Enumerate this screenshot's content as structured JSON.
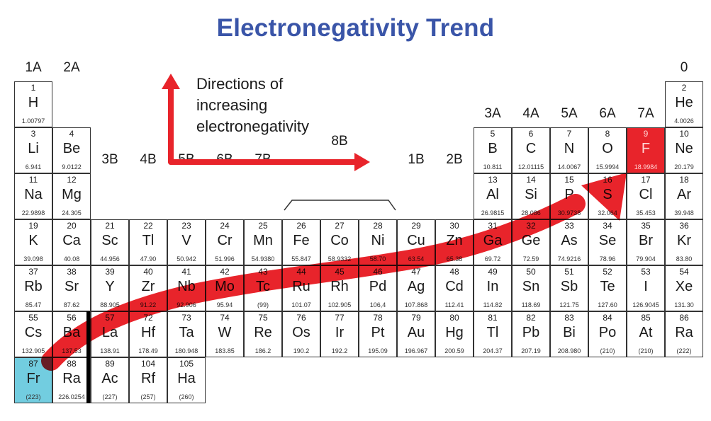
{
  "title": "Electronegativity Trend",
  "legend": {
    "lines": [
      "Directions of",
      "increasing",
      "electronegativity"
    ],
    "arrow_color": "#e8242b"
  },
  "colors": {
    "title": "#3a55a8",
    "highest_electronegativity": "#e8242b",
    "lowest_electronegativity": "#72cde0",
    "trend_arrow": "#e8242b"
  },
  "group_labels": [
    {
      "label": "1A",
      "col": 1,
      "row": 0
    },
    {
      "label": "2A",
      "col": 2,
      "row": 0
    },
    {
      "label": "3B",
      "col": 3,
      "row": 2
    },
    {
      "label": "4B",
      "col": 4,
      "row": 2
    },
    {
      "label": "5B",
      "col": 5,
      "row": 2
    },
    {
      "label": "6B",
      "col": 6,
      "row": 2
    },
    {
      "label": "7B",
      "col": 7,
      "row": 2
    },
    {
      "label": "8B",
      "col": 9,
      "row": 1.6
    },
    {
      "label": "1B",
      "col": 11,
      "row": 2
    },
    {
      "label": "2B",
      "col": 12,
      "row": 2
    },
    {
      "label": "3A",
      "col": 13,
      "row": 1
    },
    {
      "label": "4A",
      "col": 14,
      "row": 1
    },
    {
      "label": "5A",
      "col": 15,
      "row": 1
    },
    {
      "label": "6A",
      "col": 16,
      "row": 1
    },
    {
      "label": "7A",
      "col": 17,
      "row": 1
    },
    {
      "label": "0",
      "col": 18,
      "row": 0
    }
  ],
  "elements": [
    {
      "n": "1",
      "s": "H",
      "m": "1.00797",
      "col": 1,
      "row": 1
    },
    {
      "n": "2",
      "s": "He",
      "m": "4.0026",
      "col": 18,
      "row": 1
    },
    {
      "n": "3",
      "s": "Li",
      "m": "6.941",
      "col": 1,
      "row": 2
    },
    {
      "n": "4",
      "s": "Be",
      "m": "9.0122",
      "col": 2,
      "row": 2
    },
    {
      "n": "5",
      "s": "B",
      "m": "10.811",
      "col": 13,
      "row": 2
    },
    {
      "n": "6",
      "s": "C",
      "m": "12.01115",
      "col": 14,
      "row": 2
    },
    {
      "n": "7",
      "s": "N",
      "m": "14.0067",
      "col": 15,
      "row": 2
    },
    {
      "n": "8",
      "s": "O",
      "m": "15.9994",
      "col": 16,
      "row": 2
    },
    {
      "n": "9",
      "s": "F",
      "m": "18.9984",
      "col": 17,
      "row": 2,
      "hl": "red"
    },
    {
      "n": "10",
      "s": "Ne",
      "m": "20.179",
      "col": 18,
      "row": 2
    },
    {
      "n": "11",
      "s": "Na",
      "m": "22.9898",
      "col": 1,
      "row": 3
    },
    {
      "n": "12",
      "s": "Mg",
      "m": "24.305",
      "col": 2,
      "row": 3
    },
    {
      "n": "13",
      "s": "Al",
      "m": "26.9815",
      "col": 13,
      "row": 3
    },
    {
      "n": "14",
      "s": "Si",
      "m": "28.086",
      "col": 14,
      "row": 3
    },
    {
      "n": "15",
      "s": "P",
      "m": "30.9738",
      "col": 15,
      "row": 3
    },
    {
      "n": "16",
      "s": "S",
      "m": "32.064",
      "col": 16,
      "row": 3
    },
    {
      "n": "17",
      "s": "Cl",
      "m": "35.453",
      "col": 17,
      "row": 3
    },
    {
      "n": "18",
      "s": "Ar",
      "m": "39.948",
      "col": 18,
      "row": 3
    },
    {
      "n": "19",
      "s": "K",
      "m": "39.098",
      "col": 1,
      "row": 4
    },
    {
      "n": "20",
      "s": "Ca",
      "m": "40.08",
      "col": 2,
      "row": 4
    },
    {
      "n": "21",
      "s": "Sc",
      "m": "44.956",
      "col": 3,
      "row": 4
    },
    {
      "n": "22",
      "s": "Tl",
      "m": "47.90",
      "col": 4,
      "row": 4
    },
    {
      "n": "23",
      "s": "V",
      "m": "50.942",
      "col": 5,
      "row": 4
    },
    {
      "n": "24",
      "s": "Cr",
      "m": "51.996",
      "col": 6,
      "row": 4
    },
    {
      "n": "25",
      "s": "Mn",
      "m": "54.9380",
      "col": 7,
      "row": 4
    },
    {
      "n": "26",
      "s": "Fe",
      "m": "55.847",
      "col": 8,
      "row": 4
    },
    {
      "n": "27",
      "s": "Co",
      "m": "58.9332",
      "col": 9,
      "row": 4
    },
    {
      "n": "28",
      "s": "Ni",
      "m": "58.70",
      "col": 10,
      "row": 4
    },
    {
      "n": "29",
      "s": "Cu",
      "m": "63.54",
      "col": 11,
      "row": 4
    },
    {
      "n": "30",
      "s": "Zn",
      "m": "65.38",
      "col": 12,
      "row": 4
    },
    {
      "n": "31",
      "s": "Ga",
      "m": "69.72",
      "col": 13,
      "row": 4
    },
    {
      "n": "32",
      "s": "Ge",
      "m": "72.59",
      "col": 14,
      "row": 4
    },
    {
      "n": "33",
      "s": "As",
      "m": "74.9216",
      "col": 15,
      "row": 4
    },
    {
      "n": "34",
      "s": "Se",
      "m": "78.96",
      "col": 16,
      "row": 4
    },
    {
      "n": "35",
      "s": "Br",
      "m": "79.904",
      "col": 17,
      "row": 4
    },
    {
      "n": "36",
      "s": "Kr",
      "m": "83.80",
      "col": 18,
      "row": 4
    },
    {
      "n": "37",
      "s": "Rb",
      "m": "85.47",
      "col": 1,
      "row": 5
    },
    {
      "n": "38",
      "s": "Sr",
      "m": "87.62",
      "col": 2,
      "row": 5
    },
    {
      "n": "39",
      "s": "Y",
      "m": "88.905",
      "col": 3,
      "row": 5
    },
    {
      "n": "40",
      "s": "Zr",
      "m": "91.22",
      "col": 4,
      "row": 5
    },
    {
      "n": "41",
      "s": "Nb",
      "m": "92.906",
      "col": 5,
      "row": 5
    },
    {
      "n": "42",
      "s": "Mo",
      "m": "95.94",
      "col": 6,
      "row": 5
    },
    {
      "n": "43",
      "s": "Tc",
      "m": "(99)",
      "col": 7,
      "row": 5
    },
    {
      "n": "44",
      "s": "Ru",
      "m": "101.07",
      "col": 8,
      "row": 5
    },
    {
      "n": "45",
      "s": "Rh",
      "m": "102.905",
      "col": 9,
      "row": 5
    },
    {
      "n": "46",
      "s": "Pd",
      "m": "106,4",
      "col": 10,
      "row": 5
    },
    {
      "n": "47",
      "s": "Ag",
      "m": "107.868",
      "col": 11,
      "row": 5
    },
    {
      "n": "48",
      "s": "Cd",
      "m": "112.41",
      "col": 12,
      "row": 5
    },
    {
      "n": "49",
      "s": "In",
      "m": "114.82",
      "col": 13,
      "row": 5
    },
    {
      "n": "50",
      "s": "Sn",
      "m": "118.69",
      "col": 14,
      "row": 5
    },
    {
      "n": "51",
      "s": "Sb",
      "m": "121.75",
      "col": 15,
      "row": 5
    },
    {
      "n": "52",
      "s": "Te",
      "m": "127.60",
      "col": 16,
      "row": 5
    },
    {
      "n": "53",
      "s": "I",
      "m": "126.9045",
      "col": 17,
      "row": 5
    },
    {
      "n": "54",
      "s": "Xe",
      "m": "131.30",
      "col": 18,
      "row": 5
    },
    {
      "n": "55",
      "s": "Cs",
      "m": "132.905",
      "col": 1,
      "row": 6
    },
    {
      "n": "56",
      "s": "Ba",
      "m": "137.53",
      "col": 2,
      "row": 6
    },
    {
      "n": "57",
      "s": "La",
      "m": "138.91",
      "col": 3,
      "row": 6
    },
    {
      "n": "72",
      "s": "Hf",
      "m": "178.49",
      "col": 4,
      "row": 6
    },
    {
      "n": "73",
      "s": "Ta",
      "m": "180.948",
      "col": 5,
      "row": 6
    },
    {
      "n": "74",
      "s": "W",
      "m": "183.85",
      "col": 6,
      "row": 6
    },
    {
      "n": "75",
      "s": "Re",
      "m": "186.2",
      "col": 7,
      "row": 6
    },
    {
      "n": "76",
      "s": "Os",
      "m": "190.2",
      "col": 8,
      "row": 6
    },
    {
      "n": "77",
      "s": "Ir",
      "m": "192.2",
      "col": 9,
      "row": 6
    },
    {
      "n": "78",
      "s": "Pt",
      "m": "195.09",
      "col": 10,
      "row": 6
    },
    {
      "n": "79",
      "s": "Au",
      "m": "196.967",
      "col": 11,
      "row": 6
    },
    {
      "n": "80",
      "s": "Hg",
      "m": "200.59",
      "col": 12,
      "row": 6
    },
    {
      "n": "81",
      "s": "Tl",
      "m": "204.37",
      "col": 13,
      "row": 6
    },
    {
      "n": "82",
      "s": "Pb",
      "m": "207.19",
      "col": 14,
      "row": 6
    },
    {
      "n": "83",
      "s": "Bi",
      "m": "208.980",
      "col": 15,
      "row": 6
    },
    {
      "n": "84",
      "s": "Po",
      "m": "(210)",
      "col": 16,
      "row": 6
    },
    {
      "n": "85",
      "s": "At",
      "m": "(210)",
      "col": 17,
      "row": 6
    },
    {
      "n": "86",
      "s": "Ra",
      "m": "(222)",
      "col": 18,
      "row": 6
    },
    {
      "n": "87",
      "s": "Fr",
      "m": "(223)",
      "col": 1,
      "row": 7,
      "hl": "blue"
    },
    {
      "n": "88",
      "s": "Ra",
      "m": "226.0254",
      "col": 2,
      "row": 7
    },
    {
      "n": "89",
      "s": "Ac",
      "m": "(227)",
      "col": 3,
      "row": 7
    },
    {
      "n": "104",
      "s": "Rf",
      "m": "(257)",
      "col": 4,
      "row": 7
    },
    {
      "n": "105",
      "s": "Ha",
      "m": "(260)",
      "col": 5,
      "row": 7
    }
  ]
}
